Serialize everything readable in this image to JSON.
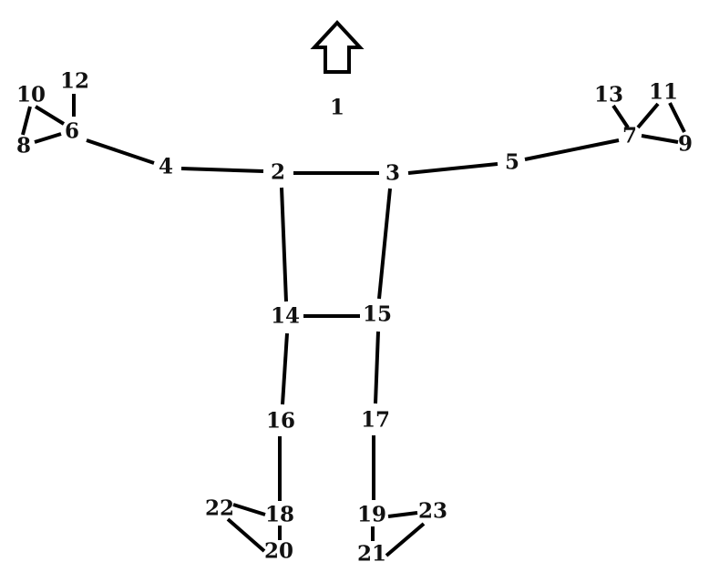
{
  "diagram": {
    "joints": [
      {
        "id": "1",
        "label": "1"
      },
      {
        "id": "2",
        "label": "2"
      },
      {
        "id": "3",
        "label": "3"
      },
      {
        "id": "4",
        "label": "4"
      },
      {
        "id": "5",
        "label": "5"
      },
      {
        "id": "6",
        "label": "6"
      },
      {
        "id": "7",
        "label": "7"
      },
      {
        "id": "8",
        "label": "8"
      },
      {
        "id": "9",
        "label": "9"
      },
      {
        "id": "10",
        "label": "10"
      },
      {
        "id": "11",
        "label": "11"
      },
      {
        "id": "12",
        "label": "12"
      },
      {
        "id": "13",
        "label": "13"
      },
      {
        "id": "14",
        "label": "14"
      },
      {
        "id": "15",
        "label": "15"
      },
      {
        "id": "16",
        "label": "16"
      },
      {
        "id": "17",
        "label": "17"
      },
      {
        "id": "18",
        "label": "18"
      },
      {
        "id": "19",
        "label": "19"
      },
      {
        "id": "20",
        "label": "20"
      },
      {
        "id": "21",
        "label": "21"
      },
      {
        "id": "22",
        "label": "22"
      },
      {
        "id": "23",
        "label": "23"
      }
    ],
    "bones": [
      [
        "2",
        "3"
      ],
      [
        "2",
        "4"
      ],
      [
        "4",
        "6"
      ],
      [
        "6",
        "10"
      ],
      [
        "6",
        "12"
      ],
      [
        "6",
        "8"
      ],
      [
        "8",
        "10"
      ],
      [
        "3",
        "5"
      ],
      [
        "5",
        "7"
      ],
      [
        "7",
        "13"
      ],
      [
        "7",
        "11"
      ],
      [
        "7",
        "9"
      ],
      [
        "9",
        "11"
      ],
      [
        "2",
        "14"
      ],
      [
        "3",
        "15"
      ],
      [
        "14",
        "15"
      ],
      [
        "14",
        "16"
      ],
      [
        "15",
        "17"
      ],
      [
        "16",
        "18"
      ],
      [
        "17",
        "19"
      ],
      [
        "18",
        "20"
      ],
      [
        "18",
        "22"
      ],
      [
        "20",
        "22"
      ],
      [
        "19",
        "21"
      ],
      [
        "19",
        "23"
      ],
      [
        "21",
        "23"
      ]
    ],
    "orientation_icon": "up-arrow-icon",
    "line_color": "#000000",
    "background_color": "#ffffff"
  }
}
